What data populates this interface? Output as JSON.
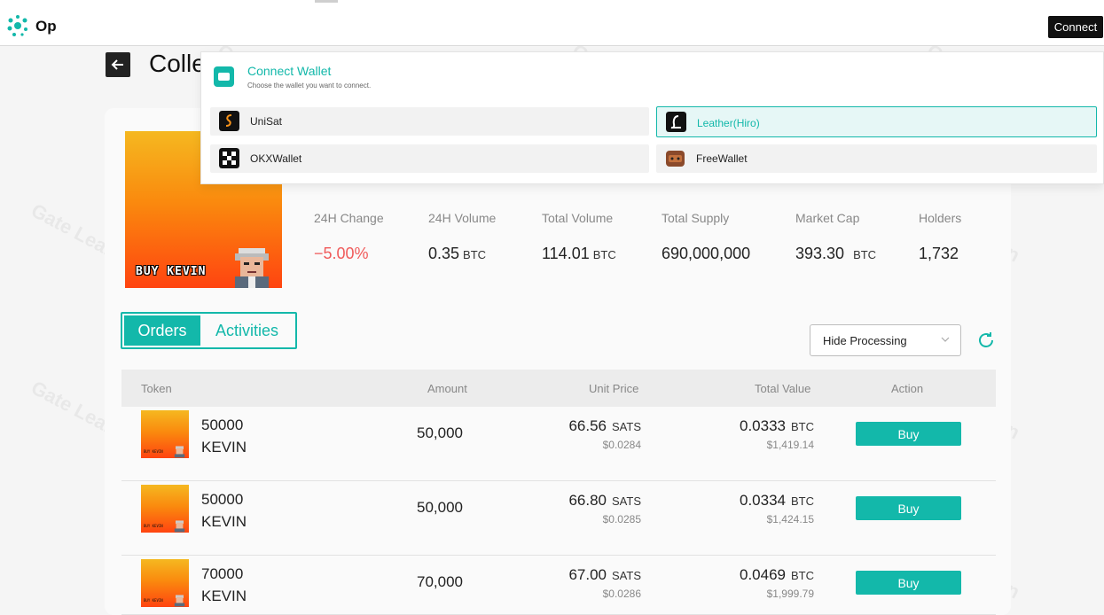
{
  "header": {
    "logo_text": "Op",
    "connect_label": "Connect"
  },
  "page": {
    "title": "Collection"
  },
  "banner": {
    "text": "BUY KEVIN"
  },
  "stats": [
    {
      "label": "24H Change",
      "value": "−5.00%",
      "unit": ""
    },
    {
      "label": "24H Volume",
      "value": "0.35",
      "unit": "BTC"
    },
    {
      "label": "Total Volume",
      "value": "114.01",
      "unit": "BTC"
    },
    {
      "label": "Total Supply",
      "value": "690,000,000",
      "unit": ""
    },
    {
      "label": "Market Cap",
      "value": "393.30",
      "unit": "BTC"
    },
    {
      "label": "Holders",
      "value": "1,732",
      "unit": ""
    }
  ],
  "tabs": [
    {
      "label": "Orders"
    },
    {
      "label": "Activities"
    }
  ],
  "filter": {
    "selected": "Hide Processing"
  },
  "table": {
    "columns": [
      "Token",
      "Amount",
      "Unit Price",
      "Total Value",
      "Action"
    ],
    "rows": [
      {
        "token_line1": "50000",
        "token_line2": "KEVIN",
        "amount": "50,000",
        "price": "66.56",
        "price_unit": "SATS",
        "price_usd": "$0.0284",
        "total": "0.0333",
        "total_unit": "BTC",
        "total_usd": "$1,419.14",
        "action": "Buy"
      },
      {
        "token_line1": "50000",
        "token_line2": "KEVIN",
        "amount": "50,000",
        "price": "66.80",
        "price_unit": "SATS",
        "price_usd": "$0.0285",
        "total": "0.0334",
        "total_unit": "BTC",
        "total_usd": "$1,424.15",
        "action": "Buy"
      },
      {
        "token_line1": "70000",
        "token_line2": "KEVIN",
        "amount": "70,000",
        "price": "67.00",
        "price_unit": "SATS",
        "price_usd": "$0.0286",
        "total": "0.0469",
        "total_unit": "BTC",
        "total_usd": "$1,999.79",
        "action": "Buy"
      }
    ]
  },
  "modal": {
    "title": "Connect Wallet",
    "subtitle": "Choose the wallet you want to connect.",
    "wallets": [
      {
        "label": "UniSat"
      },
      {
        "label": "Leather(Hiro)"
      },
      {
        "label": "OKXWallet"
      },
      {
        "label": "FreeWallet"
      }
    ]
  },
  "watermark": {
    "text": "Gate Learn"
  },
  "colors": {
    "accent": "#13b8aa",
    "negative": "#f05a5a"
  }
}
